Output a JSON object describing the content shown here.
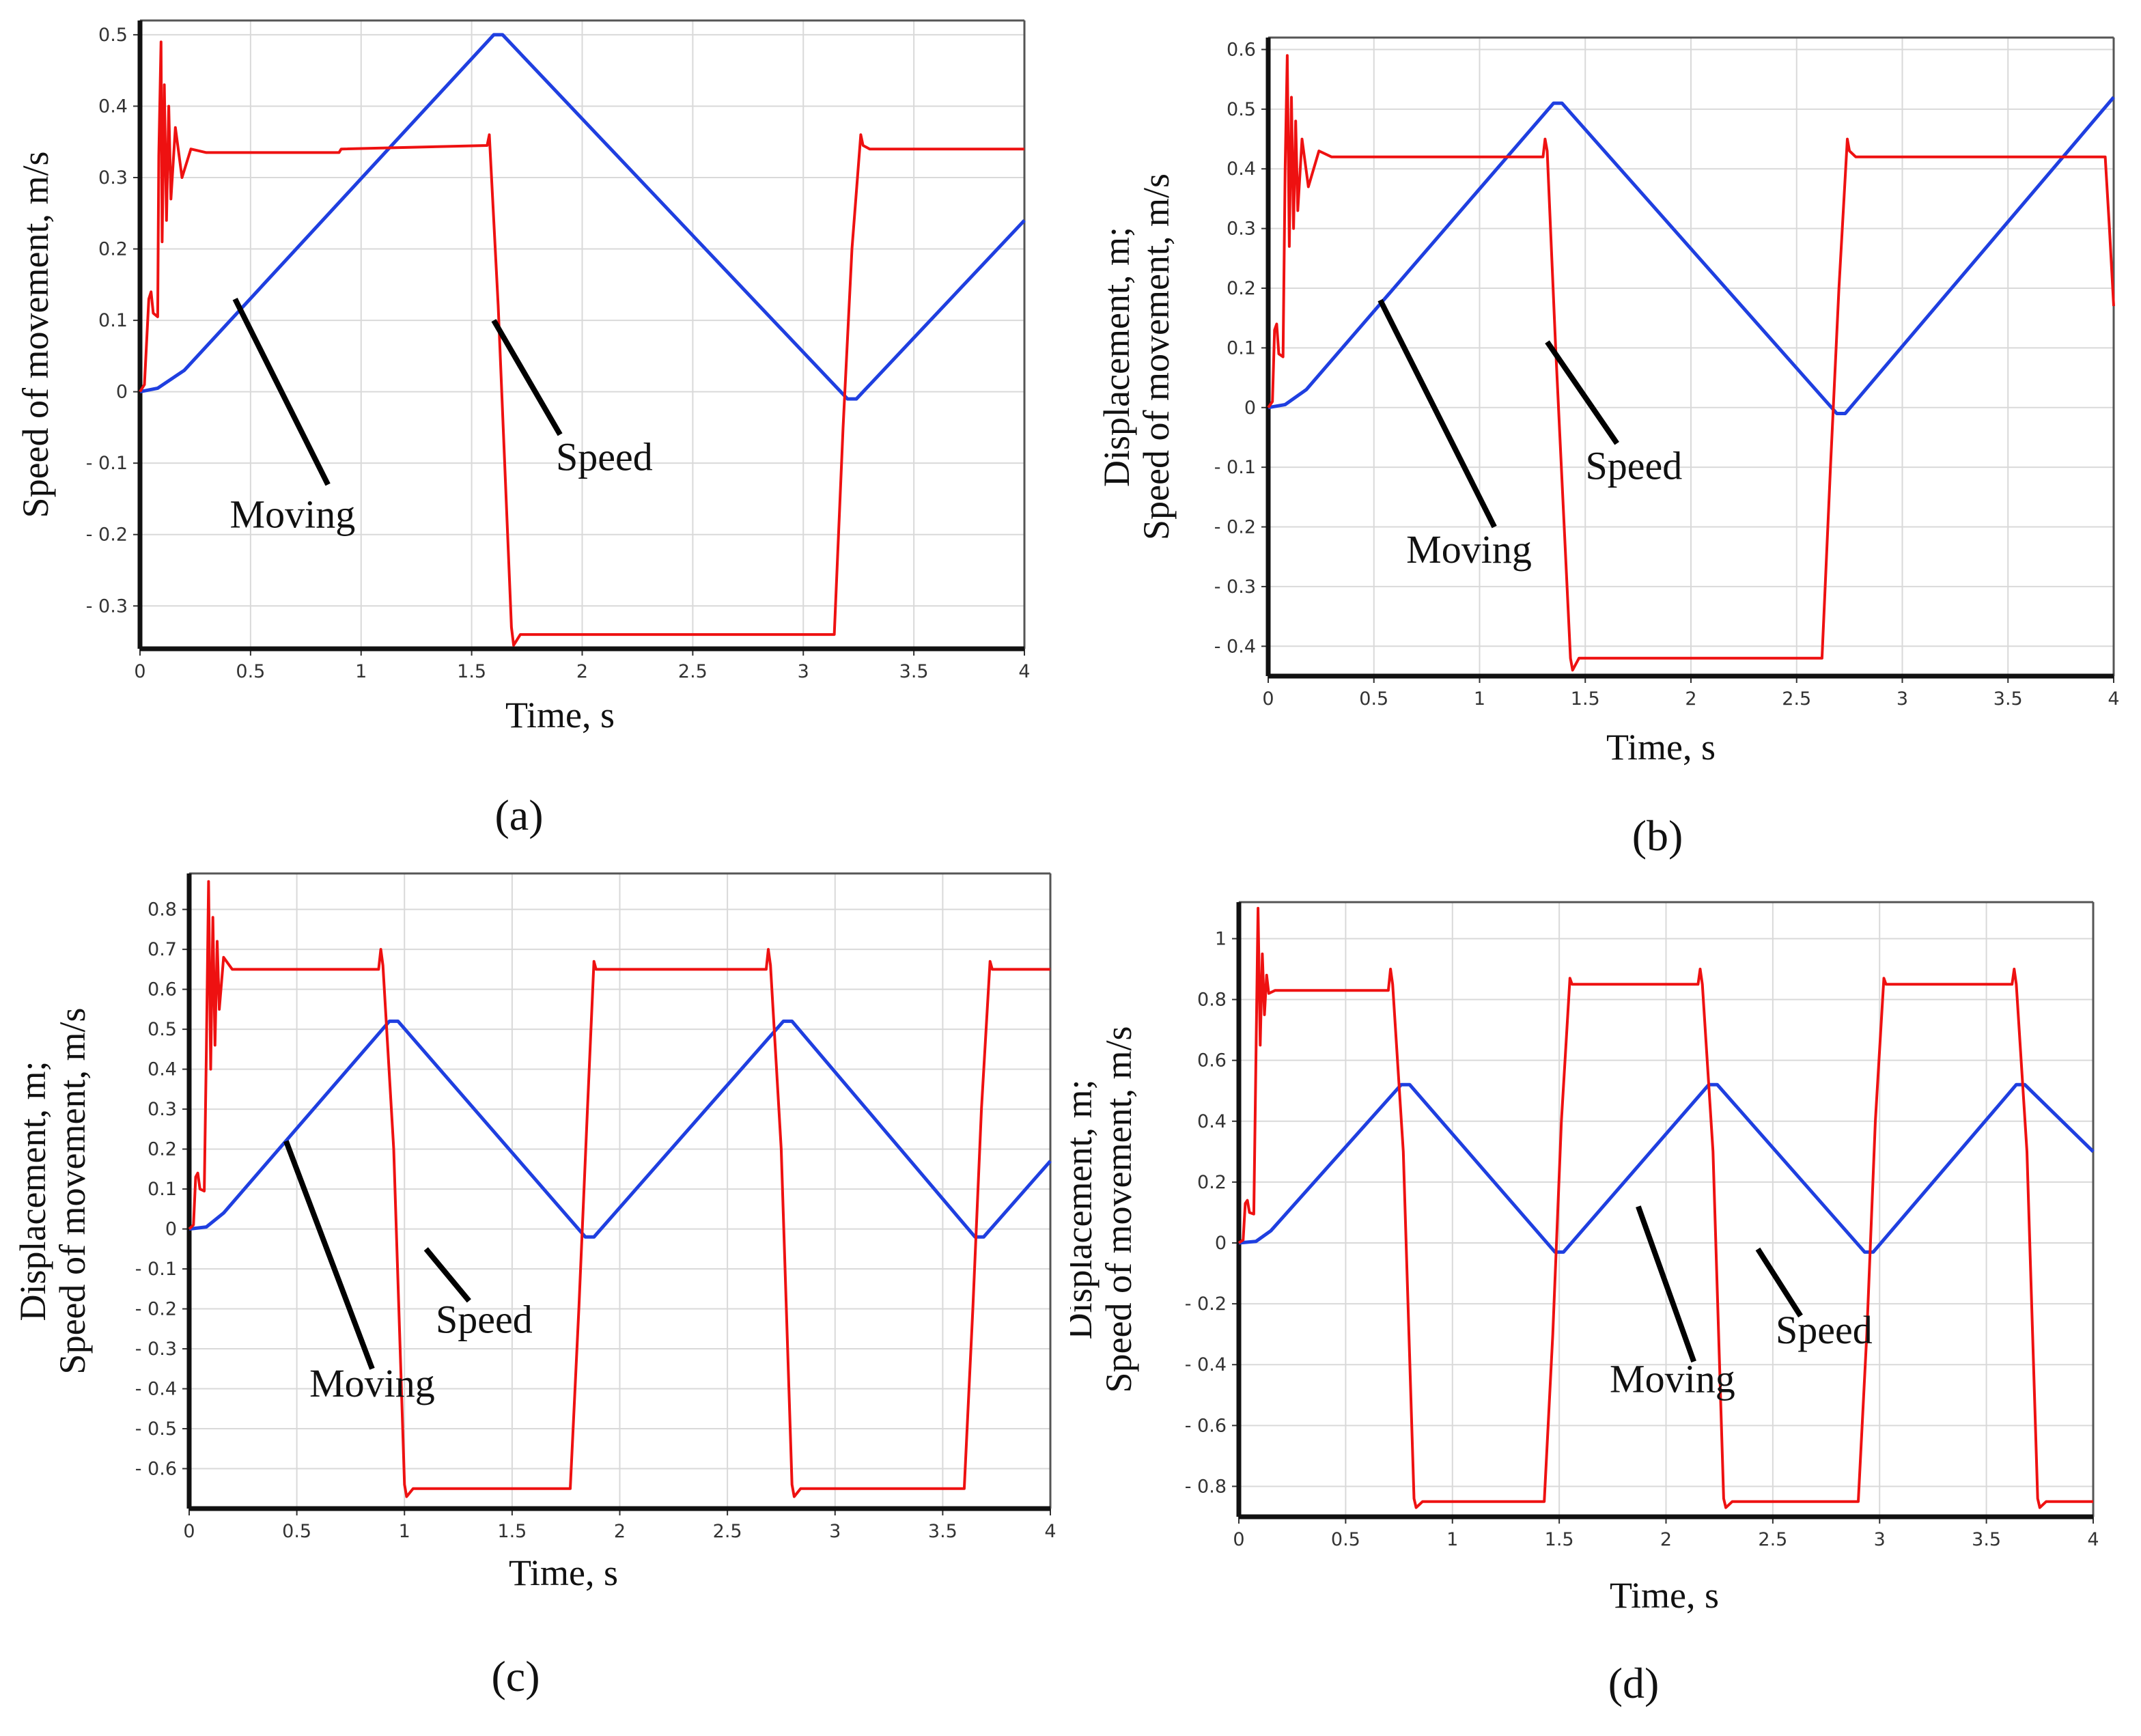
{
  "chart_data": [
    {
      "type": "line",
      "caption": "(a)",
      "xlabel": "Time, s",
      "ylabel_lines": [
        "Speed of movement, m/s"
      ],
      "xlim": [
        0,
        4
      ],
      "ylim": [
        -0.36,
        0.52
      ],
      "x_ticks": [
        0,
        0.5,
        1,
        1.5,
        2,
        2.5,
        3,
        3.5,
        4
      ],
      "x_tick_labels": [
        "0",
        "0.5",
        "1",
        "1.5",
        "2",
        "2.5",
        "3",
        "3.5",
        "4"
      ],
      "y_ticks": [
        0.5,
        0.4,
        0.3,
        0.2,
        0.1,
        0,
        -0.1,
        -0.2,
        -0.3
      ],
      "y_tick_labels": [
        "0.5",
        "0.4",
        "0.3",
        "0.2",
        "0.1",
        "0",
        "- 0.1",
        "- 0.2",
        "- 0.3"
      ],
      "grid": true,
      "series": [
        {
          "name": "Moving",
          "color": "#1f3fe0",
          "x": [
            0,
            0.08,
            0.2,
            1.6,
            1.64,
            3.2,
            3.24,
            4.0
          ],
          "y": [
            0,
            0.005,
            0.03,
            0.5,
            0.5,
            -0.01,
            -0.01,
            0.24
          ]
        },
        {
          "name": "Speed",
          "color": "#ee1111",
          "x": [
            0,
            0.02,
            0.04,
            0.05,
            0.06,
            0.08,
            0.085,
            0.095,
            0.1,
            0.11,
            0.12,
            0.13,
            0.14,
            0.16,
            0.19,
            0.23,
            0.3,
            0.9,
            0.91,
            1.57,
            1.58,
            1.62,
            1.68,
            1.69,
            1.72,
            3.14,
            3.18,
            3.22,
            3.26,
            3.27,
            3.3,
            4.0
          ],
          "y": [
            0,
            0.01,
            0.13,
            0.14,
            0.11,
            0.105,
            0.33,
            0.49,
            0.21,
            0.43,
            0.24,
            0.4,
            0.27,
            0.37,
            0.3,
            0.34,
            0.335,
            0.335,
            0.34,
            0.345,
            0.36,
            0.12,
            -0.33,
            -0.355,
            -0.34,
            -0.34,
            -0.05,
            0.2,
            0.36,
            0.345,
            0.34,
            0.34
          ]
        }
      ],
      "annotations": [
        {
          "text": "Moving",
          "x": 0.69,
          "y": -0.19,
          "pointer_from": [
            0.85,
            -0.13
          ],
          "pointer_to": [
            0.43,
            0.13
          ]
        },
        {
          "text": "Speed",
          "x": 2.1,
          "y": -0.11,
          "pointer_from": [
            1.9,
            -0.06
          ],
          "pointer_to": [
            1.6,
            0.1
          ]
        }
      ]
    },
    {
      "type": "line",
      "caption": "(b)",
      "xlabel": "Time, s",
      "ylabel_lines": [
        "Displacement, m;",
        "Speed of movement, m/s"
      ],
      "xlim": [
        0,
        4
      ],
      "ylim": [
        -0.45,
        0.62
      ],
      "x_ticks": [
        0,
        0.5,
        1,
        1.5,
        2,
        2.5,
        3,
        3.5,
        4
      ],
      "x_tick_labels": [
        "0",
        "0.5",
        "1",
        "1.5",
        "2",
        "2.5",
        "3",
        "3.5",
        "4"
      ],
      "y_ticks": [
        0.6,
        0.5,
        0.4,
        0.3,
        0.2,
        0.1,
        0,
        -0.1,
        -0.2,
        -0.3,
        -0.4
      ],
      "y_tick_labels": [
        "0.6",
        "0.5",
        "0.4",
        "0.3",
        "0.2",
        "0.1",
        "0",
        "- 0.1",
        "- 0.2",
        "- 0.3",
        "- 0.4"
      ],
      "grid": true,
      "series": [
        {
          "name": "Moving",
          "color": "#1f3fe0",
          "x": [
            0,
            0.08,
            0.18,
            1.35,
            1.39,
            2.69,
            2.73,
            4.0
          ],
          "y": [
            0,
            0.005,
            0.03,
            0.51,
            0.51,
            -0.01,
            -0.01,
            0.52
          ]
        },
        {
          "name": "Speed",
          "color": "#ee1111",
          "x": [
            0,
            0.02,
            0.03,
            0.04,
            0.05,
            0.07,
            0.08,
            0.09,
            0.1,
            0.11,
            0.12,
            0.13,
            0.14,
            0.16,
            0.19,
            0.24,
            0.3,
            1.3,
            1.31,
            1.32,
            1.36,
            1.43,
            1.44,
            1.47,
            2.62,
            2.66,
            2.7,
            2.74,
            2.75,
            2.78,
            3.96,
            3.98,
            4.0
          ],
          "y": [
            0,
            0.01,
            0.13,
            0.14,
            0.09,
            0.085,
            0.4,
            0.59,
            0.27,
            0.52,
            0.3,
            0.48,
            0.33,
            0.45,
            0.37,
            0.43,
            0.42,
            0.42,
            0.45,
            0.43,
            0.1,
            -0.42,
            -0.44,
            -0.42,
            -0.42,
            -0.1,
            0.2,
            0.45,
            0.43,
            0.42,
            0.42,
            0.3,
            0.17
          ]
        }
      ],
      "annotations": [
        {
          "text": "Moving",
          "x": 0.95,
          "y": -0.26,
          "pointer_from": [
            1.07,
            -0.2
          ],
          "pointer_to": [
            0.53,
            0.18
          ]
        },
        {
          "text": "Speed",
          "x": 1.73,
          "y": -0.12,
          "pointer_from": [
            1.65,
            -0.06
          ],
          "pointer_to": [
            1.32,
            0.11
          ]
        }
      ]
    },
    {
      "type": "line",
      "caption": "(c)",
      "xlabel": "Time, s",
      "ylabel_lines": [
        "Displacement, m;",
        "Speed of movement, m/s"
      ],
      "xlim": [
        0,
        4
      ],
      "ylim": [
        -0.7,
        0.89
      ],
      "x_ticks": [
        0,
        0.5,
        1,
        1.5,
        2,
        2.5,
        3,
        3.5,
        4
      ],
      "x_tick_labels": [
        "0",
        "0.5",
        "1",
        "1.5",
        "2",
        "2.5",
        "3",
        "3.5",
        "4"
      ],
      "y_ticks": [
        0.8,
        0.7,
        0.6,
        0.5,
        0.4,
        0.3,
        0.2,
        0.1,
        0,
        -0.1,
        -0.2,
        -0.3,
        -0.4,
        -0.5,
        -0.6
      ],
      "y_tick_labels": [
        "0.8",
        "0.7",
        "0.6",
        "0.5",
        "0.4",
        "0.3",
        "0.2",
        "0.1",
        "0",
        "- 0.1",
        "- 0.2",
        "- 0.3",
        "- 0.4",
        "- 0.5",
        "- 0.6"
      ],
      "grid": true,
      "series": [
        {
          "name": "Moving",
          "color": "#1f3fe0",
          "x": [
            0,
            0.08,
            0.16,
            0.93,
            0.97,
            1.84,
            1.88,
            2.76,
            2.8,
            3.65,
            3.69,
            4.0
          ],
          "y": [
            0,
            0.005,
            0.04,
            0.52,
            0.52,
            -0.02,
            -0.02,
            0.52,
            0.52,
            -0.02,
            -0.02,
            0.17
          ]
        },
        {
          "name": "Speed",
          "color": "#ee1111",
          "x": [
            0,
            0.02,
            0.03,
            0.04,
            0.05,
            0.07,
            0.08,
            0.09,
            0.1,
            0.11,
            0.12,
            0.13,
            0.14,
            0.16,
            0.2,
            0.88,
            0.89,
            0.9,
            0.95,
            1.0,
            1.01,
            1.04,
            1.77,
            1.81,
            1.85,
            1.88,
            1.89,
            1.92,
            2.68,
            2.69,
            2.7,
            2.75,
            2.8,
            2.81,
            2.84,
            3.6,
            3.64,
            3.68,
            3.72,
            3.73,
            3.76,
            4.0
          ],
          "y": [
            0,
            0.01,
            0.13,
            0.14,
            0.1,
            0.095,
            0.45,
            0.87,
            0.4,
            0.78,
            0.46,
            0.72,
            0.55,
            0.68,
            0.65,
            0.65,
            0.7,
            0.66,
            0.2,
            -0.64,
            -0.67,
            -0.65,
            -0.65,
            -0.2,
            0.3,
            0.67,
            0.65,
            0.65,
            0.65,
            0.7,
            0.66,
            0.2,
            -0.64,
            -0.67,
            -0.65,
            -0.65,
            -0.2,
            0.3,
            0.67,
            0.65,
            0.65,
            0.65
          ]
        }
      ],
      "annotations": [
        {
          "text": "Moving",
          "x": 0.85,
          "y": -0.42,
          "pointer_from": [
            0.85,
            -0.35
          ],
          "pointer_to": [
            0.45,
            0.22
          ]
        },
        {
          "text": "Speed",
          "x": 1.37,
          "y": -0.26,
          "pointer_from": [
            1.3,
            -0.18
          ],
          "pointer_to": [
            1.1,
            -0.05
          ]
        }
      ]
    },
    {
      "type": "line",
      "caption": "(d)",
      "xlabel": "Time, s",
      "ylabel_lines": [
        "Displacement, m;",
        "Speed of movement, m/s"
      ],
      "xlim": [
        0,
        4
      ],
      "ylim": [
        -0.9,
        1.12
      ],
      "x_ticks": [
        0,
        0.5,
        1,
        1.5,
        2,
        2.5,
        3,
        3.5,
        4
      ],
      "x_tick_labels": [
        "0",
        "0.5",
        "1",
        "1.5",
        "2",
        "2.5",
        "3",
        "3.5",
        "4"
      ],
      "y_ticks": [
        1,
        0.8,
        0.6,
        0.4,
        0.2,
        0,
        -0.2,
        -0.4,
        -0.6,
        -0.8
      ],
      "y_tick_labels": [
        "1",
        "0.8",
        "0.6",
        "0.4",
        "0.2",
        "0",
        "- 0.2",
        "- 0.4",
        "- 0.6",
        "- 0.8"
      ],
      "grid": true,
      "series": [
        {
          "name": "Moving",
          "color": "#1f3fe0",
          "x": [
            0,
            0.08,
            0.15,
            0.76,
            0.8,
            1.48,
            1.52,
            2.2,
            2.24,
            2.93,
            2.97,
            3.64,
            3.68,
            4.0
          ],
          "y": [
            0,
            0.005,
            0.04,
            0.52,
            0.52,
            -0.03,
            -0.03,
            0.52,
            0.52,
            -0.03,
            -0.03,
            0.52,
            0.52,
            0.3
          ]
        },
        {
          "name": "Speed",
          "color": "#ee1111",
          "x": [
            0,
            0.02,
            0.03,
            0.04,
            0.05,
            0.07,
            0.08,
            0.09,
            0.1,
            0.11,
            0.12,
            0.13,
            0.14,
            0.17,
            0.7,
            0.71,
            0.72,
            0.77,
            0.82,
            0.83,
            0.86,
            1.43,
            1.47,
            1.51,
            1.55,
            1.56,
            1.59,
            2.15,
            2.16,
            2.17,
            2.22,
            2.27,
            2.28,
            2.31,
            2.9,
            2.94,
            2.98,
            3.02,
            3.03,
            3.06,
            3.62,
            3.63,
            3.64,
            3.69,
            3.74,
            3.75,
            3.78,
            4.0
          ],
          "y": [
            0,
            0.01,
            0.13,
            0.14,
            0.1,
            0.095,
            0.6,
            1.1,
            0.65,
            0.95,
            0.75,
            0.88,
            0.82,
            0.83,
            0.83,
            0.9,
            0.85,
            0.3,
            -0.84,
            -0.87,
            -0.85,
            -0.85,
            -0.3,
            0.4,
            0.87,
            0.85,
            0.85,
            0.85,
            0.9,
            0.85,
            0.3,
            -0.84,
            -0.87,
            -0.85,
            -0.85,
            -0.3,
            0.4,
            0.87,
            0.85,
            0.85,
            0.85,
            0.9,
            0.85,
            0.3,
            -0.84,
            -0.87,
            -0.85,
            -0.85
          ]
        }
      ],
      "annotations": [
        {
          "text": "Moving",
          "x": 2.03,
          "y": -0.49,
          "pointer_from": [
            2.13,
            -0.39
          ],
          "pointer_to": [
            1.87,
            0.12
          ]
        },
        {
          "text": "Speed",
          "x": 2.74,
          "y": -0.33,
          "pointer_from": [
            2.63,
            -0.24
          ],
          "pointer_to": [
            2.43,
            -0.02
          ]
        }
      ]
    }
  ]
}
